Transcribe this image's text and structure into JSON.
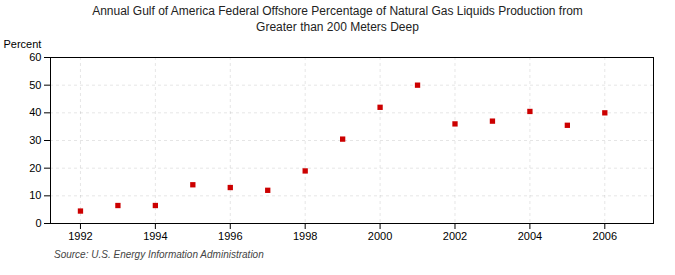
{
  "chart_data": {
    "type": "scatter",
    "title": "Annual Gulf of America Federal Offshore Percentage of Natural Gas Liquids Production from\nGreater than 200 Meters Deep",
    "ylabel": "Percent",
    "source": "Source: U.S. Energy Information Administration",
    "x": [
      1992,
      1993,
      1994,
      1995,
      1996,
      1997,
      1998,
      1999,
      2000,
      2001,
      2002,
      2003,
      2004,
      2005,
      2006
    ],
    "values": [
      4.5,
      6.5,
      6.5,
      14.0,
      13.0,
      12.0,
      19.0,
      30.5,
      42.0,
      50.0,
      36.0,
      37.0,
      40.5,
      35.5,
      40.0
    ],
    "color": "#cc0000",
    "marker": "square",
    "xlim": [
      1991.2,
      2007.3
    ],
    "ylim": [
      0,
      60
    ],
    "xticks": [
      1992,
      1994,
      1996,
      1998,
      2000,
      2002,
      2004,
      2006
    ],
    "yticks": [
      0,
      10,
      20,
      30,
      40,
      50,
      60
    ],
    "grid": true
  }
}
